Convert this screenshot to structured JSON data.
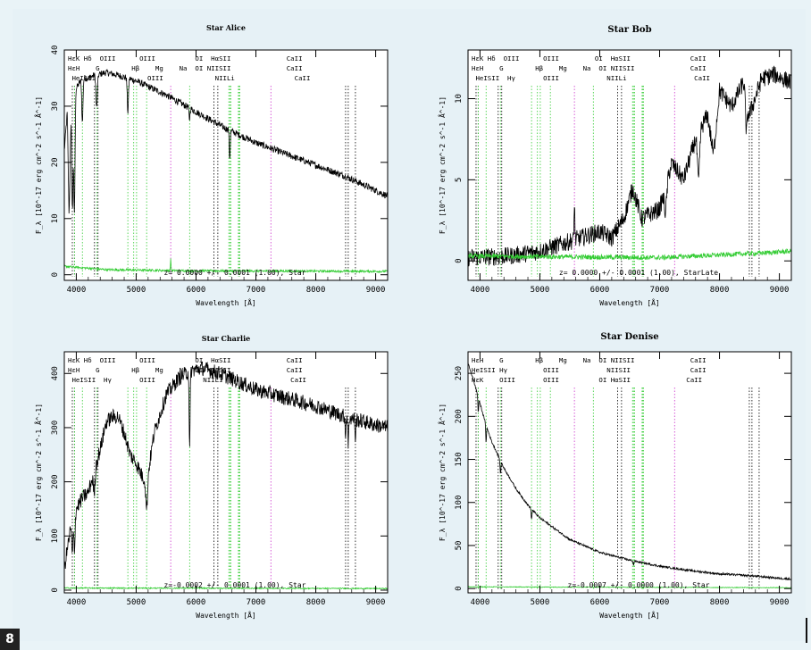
{
  "page": {
    "figure_number": "8"
  },
  "axis_common": {
    "xlabel": "Wavelength [Å]",
    "ylabel": "F_λ [10^-17 erg cm^-2 s^-1 Å^-1]",
    "xticks": [
      4000,
      5000,
      6000,
      7000,
      8000,
      9000
    ],
    "xlim": [
      3800,
      9200
    ]
  },
  "line_markers": [
    {
      "wl": 3934,
      "label": "K",
      "kind": "abs"
    },
    {
      "wl": 3969,
      "label": "H",
      "kind": "abs"
    },
    {
      "wl": 3970,
      "label": "Hε",
      "kind": "bal"
    },
    {
      "wl": 4102,
      "label": "Hδ",
      "kind": "bal"
    },
    {
      "wl": 4304,
      "label": "G",
      "kind": "abs"
    },
    {
      "wl": 4341,
      "label": "Hγ",
      "kind": "bal"
    },
    {
      "wl": 4363,
      "label": "OIII",
      "kind": "abs"
    },
    {
      "wl": 4861,
      "label": "Hβ",
      "kind": "bal"
    },
    {
      "wl": 4959,
      "label": "OIII",
      "kind": "bal"
    },
    {
      "wl": 5007,
      "label": "OIII",
      "kind": "bal"
    },
    {
      "wl": 5175,
      "label": "Mg",
      "kind": "bal"
    },
    {
      "wl": 5577,
      "label": "",
      "kind": "sky"
    },
    {
      "wl": 5893,
      "label": "Na",
      "kind": "bal"
    },
    {
      "wl": 6300,
      "label": "OI",
      "kind": "abs"
    },
    {
      "wl": 6364,
      "label": "OI",
      "kind": "abs"
    },
    {
      "wl": 6548,
      "label": "NII",
      "kind": "bal"
    },
    {
      "wl": 6563,
      "label": "Hα",
      "kind": "bal"
    },
    {
      "wl": 6583,
      "label": "NII",
      "kind": "bal"
    },
    {
      "wl": 6707,
      "label": "Li",
      "kind": "bal"
    },
    {
      "wl": 6716,
      "label": "SII",
      "kind": "bal"
    },
    {
      "wl": 6731,
      "label": "SII",
      "kind": "bal"
    },
    {
      "wl": 7250,
      "label": "",
      "kind": "sky"
    },
    {
      "wl": 8498,
      "label": "CaII",
      "kind": "abs"
    },
    {
      "wl": 8542,
      "label": "CaII",
      "kind": "abs"
    },
    {
      "wl": 8662,
      "label": "CaII",
      "kind": "abs"
    }
  ],
  "chart_data": [
    {
      "type": "line",
      "title": "Star Alice",
      "xlabel": "Wavelength [Å]",
      "ylabel": "F_λ [10^-17 erg cm^-2 s^-1 Å^-1]",
      "xlim": [
        3800,
        9200
      ],
      "ylim": [
        -1,
        40
      ],
      "yticks": [
        0,
        10,
        20,
        30,
        40
      ],
      "label_rows": [
        "HεK Hδ  OIII      OIII          OI  HαSII              CaII",
        "HεH    G        Hβ    Mg    Na  OI NIISII              CaII",
        " HeISII             OIII             NIILi               CaII"
      ],
      "annotation": "z= 0.0000 +/- 0.0001 (1.00), Star",
      "series": [
        {
          "name": "spectrum",
          "color": "#000000",
          "knots": [
            [
              3800,
              22
            ],
            [
              3850,
              29
            ],
            [
              3880,
              10
            ],
            [
              3920,
              32
            ],
            [
              3960,
              25
            ],
            [
              3990,
              33
            ],
            [
              4100,
              35
            ],
            [
              4200,
              35
            ],
            [
              4300,
              35.5
            ],
            [
              4500,
              36
            ],
            [
              4700,
              35.5
            ],
            [
              5000,
              34.5
            ],
            [
              5500,
              32
            ],
            [
              6000,
              29
            ],
            [
              6500,
              26
            ],
            [
              7000,
              23.5
            ],
            [
              7500,
              21.5
            ],
            [
              8000,
              19.5
            ],
            [
              8500,
              17.5
            ],
            [
              9000,
              15
            ],
            [
              9200,
              14
            ]
          ],
          "noise": 0.6,
          "dips": [
            [
              3934,
              18,
              10
            ],
            [
              3969,
              16,
              10
            ],
            [
              4102,
              8,
              10
            ],
            [
              4341,
              6,
              12
            ],
            [
              4861,
              6,
              10
            ],
            [
              6563,
              5,
              8
            ],
            [
              5890,
              2,
              8
            ]
          ]
        },
        {
          "name": "error",
          "color": "#33cc33",
          "knots": [
            [
              3800,
              1.5
            ],
            [
              4500,
              0.9
            ],
            [
              6000,
              0.7
            ],
            [
              9200,
              0.6
            ]
          ],
          "noise": 0.2,
          "dips": [
            [
              5577,
              -2,
              5
            ]
          ]
        }
      ]
    },
    {
      "type": "line",
      "title": "Star Bob",
      "xlabel": "Wavelength [Å]",
      "ylabel": "F_λ [10^-17 erg cm^-2 s^-1 Å^-1]",
      "xlim": [
        3800,
        9200
      ],
      "ylim": [
        -1.2,
        13
      ],
      "yticks": [
        0,
        5,
        10
      ],
      "label_rows": [
        "HεK Hδ  OIII      OIII         OI  HαSII               CaII",
        "HεH    G        Hβ    Mg    Na  OI NIISII              CaII",
        " HeISII  Hγ       OIII            NIILi                 CaII"
      ],
      "annotation": "z= 0.0000 +/- 0.0001 (1.00), StarLate",
      "series": [
        {
          "name": "spectrum",
          "color": "#000000",
          "knots": [
            [
              3800,
              0.2
            ],
            [
              4500,
              0.3
            ],
            [
              5000,
              0.6
            ],
            [
              5500,
              1.2
            ],
            [
              6000,
              1.8
            ],
            [
              6200,
              1.4
            ],
            [
              6400,
              2.6
            ],
            [
              6550,
              4.5
            ],
            [
              6700,
              2.6
            ],
            [
              7000,
              3.2
            ],
            [
              7200,
              6.0
            ],
            [
              7400,
              5.0
            ],
            [
              7600,
              7.5
            ],
            [
              7800,
              9.0
            ],
            [
              7900,
              6.5
            ],
            [
              8000,
              10.5
            ],
            [
              8200,
              9.5
            ],
            [
              8400,
              11.0
            ],
            [
              8500,
              9.0
            ],
            [
              8700,
              11.2
            ],
            [
              8900,
              11.5
            ],
            [
              9200,
              11.0
            ]
          ],
          "noise": 0.55,
          "dips": [
            [
              5577,
              -2.5,
              6
            ],
            [
              7100,
              1.5,
              20
            ],
            [
              7650,
              3,
              18
            ],
            [
              8450,
              2,
              15
            ]
          ]
        },
        {
          "name": "error",
          "color": "#33cc33",
          "knots": [
            [
              3800,
              0.3
            ],
            [
              7000,
              0.2
            ],
            [
              8800,
              0.5
            ],
            [
              9200,
              0.6
            ]
          ],
          "noise": 0.15,
          "dips": []
        }
      ]
    },
    {
      "type": "line",
      "title": "Star Charlie",
      "xlabel": "Wavelength [Å]",
      "ylabel": "F_λ [10^-17 erg cm^-2 s^-1 Å^-1]",
      "xlim": [
        3800,
        9200
      ],
      "ylim": [
        -5,
        440
      ],
      "yticks": [
        0,
        100,
        200,
        300,
        400
      ],
      "label_rows": [
        "HεK Hδ  OIII      OIII          OI  HαSII              CaII",
        "HεH    G        Hβ    Mg    Na  OI NIISII              CaII",
        " HeISII  Hγ       OIII            NIILi                 CaII"
      ],
      "annotation": "z=-0.0002 +/- 0.0001 (1.00), Star",
      "series": [
        {
          "name": "spectrum",
          "color": "#000000",
          "knots": [
            [
              3800,
              40
            ],
            [
              3900,
              110
            ],
            [
              4000,
              150
            ],
            [
              4100,
              170
            ],
            [
              4200,
              180
            ],
            [
              4300,
              220
            ],
            [
              4400,
              260
            ],
            [
              4500,
              310
            ],
            [
              4600,
              320
            ],
            [
              4700,
              320
            ],
            [
              4800,
              290
            ],
            [
              4900,
              250
            ],
            [
              5000,
              235
            ],
            [
              5100,
              210
            ],
            [
              5180,
              200
            ],
            [
              5300,
              290
            ],
            [
              5500,
              360
            ],
            [
              5700,
              390
            ],
            [
              5900,
              405
            ],
            [
              6100,
              410
            ],
            [
              6400,
              400
            ],
            [
              6700,
              385
            ],
            [
              7000,
              370
            ],
            [
              7500,
              355
            ],
            [
              8000,
              340
            ],
            [
              8500,
              320
            ],
            [
              9000,
              305
            ],
            [
              9200,
              300
            ]
          ],
          "noise": 14,
          "dips": [
            [
              3934,
              60,
              10
            ],
            [
              3969,
              60,
              10
            ],
            [
              4300,
              40,
              14
            ],
            [
              5175,
              50,
              14
            ],
            [
              5893,
              150,
              8
            ],
            [
              8498,
              40,
              6
            ],
            [
              8542,
              60,
              6
            ],
            [
              8662,
              40,
              6
            ]
          ]
        },
        {
          "name": "error",
          "color": "#33cc33",
          "knots": [
            [
              3800,
              4
            ],
            [
              9200,
              3
            ]
          ],
          "noise": 1,
          "dips": []
        }
      ]
    },
    {
      "type": "line",
      "title": "Star Denise",
      "xlabel": "Wavelength [Å]",
      "ylabel": "F_λ [10^-17 erg cm^-2 s^-1 Å^-1]",
      "xlim": [
        3800,
        9200
      ],
      "ylim": [
        -5,
        275
      ],
      "yticks": [
        0,
        50,
        100,
        150,
        200,
        250
      ],
      "label_rows": [
        "HεH    G        Hβ    Mg    Na  OI NIISII              CaII",
        "HeISII Hγ         OIII            NIISII               CaII",
        "HεK    OIII       OIII          OI HαSII              CaII"
      ],
      "annotation": "z=-0.0007 +/- 0.0000 (1.00), Star",
      "series": [
        {
          "name": "spectrum",
          "color": "#000000",
          "knots": [
            [
              3800,
              262
            ],
            [
              3900,
              240
            ],
            [
              4000,
              215
            ],
            [
              4100,
              190
            ],
            [
              4200,
              170
            ],
            [
              4400,
              140
            ],
            [
              4600,
              116
            ],
            [
              4800,
              97
            ],
            [
              5000,
              82
            ],
            [
              5500,
              57
            ],
            [
              6000,
              42
            ],
            [
              6500,
              33
            ],
            [
              7000,
              26
            ],
            [
              7500,
              21
            ],
            [
              8000,
              17
            ],
            [
              8500,
              15
            ],
            [
              9000,
              12
            ],
            [
              9200,
              11
            ]
          ],
          "noise": 1.2,
          "dips": [
            [
              3970,
              18,
              6
            ],
            [
              4102,
              20,
              6
            ],
            [
              4341,
              16,
              7
            ],
            [
              4861,
              12,
              7
            ],
            [
              6563,
              5,
              6
            ]
          ]
        },
        {
          "name": "error",
          "color": "#33cc33",
          "knots": [
            [
              3800,
              2
            ],
            [
              9200,
              1
            ]
          ],
          "noise": 0.4,
          "dips": []
        }
      ]
    }
  ]
}
